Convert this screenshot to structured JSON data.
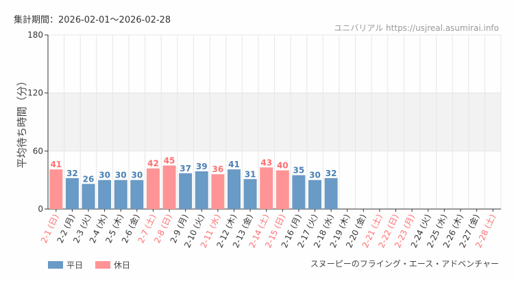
{
  "header": {
    "period": "集計期間：2026-02-01～2026-02-28",
    "credit": "ユニバリアル https://usjreal.asumirai.info"
  },
  "footer": {
    "attraction": "スヌーピーのフライング・エース・アドベンチャー"
  },
  "legend": [
    {
      "label": "平日",
      "color": "#6a9ac6"
    },
    {
      "label": "休日",
      "color": "#ff9496"
    }
  ],
  "chart_data": {
    "type": "bar",
    "ylabel": "平均待ち時間（分）",
    "ylim": [
      0,
      180
    ],
    "yticks": [
      0,
      60,
      120,
      180
    ],
    "highlight_band": [
      60,
      120
    ],
    "grid": true,
    "legend_position": "bottom-left",
    "categories": [
      "2-1 (日)",
      "2-2 (月)",
      "2-3 (火)",
      "2-4 (水)",
      "2-5 (木)",
      "2-6 (金)",
      "2-7 (土)",
      "2-8 (日)",
      "2-9 (月)",
      "2-10 (火)",
      "2-11 (水)",
      "2-12 (木)",
      "2-13 (金)",
      "2-14 (土)",
      "2-15 (日)",
      "2-16 (月)",
      "2-17 (火)",
      "2-18 (水)",
      "2-19 (木)",
      "2-20 (金)",
      "2-21 (土)",
      "2-22 (日)",
      "2-23 (月)",
      "2-24 (火)",
      "2-25 (水)",
      "2-26 (木)",
      "2-27 (金)",
      "2-28 (土)"
    ],
    "holiday": [
      true,
      false,
      false,
      false,
      false,
      false,
      true,
      true,
      false,
      false,
      true,
      false,
      false,
      true,
      true,
      false,
      false,
      false,
      false,
      false,
      true,
      true,
      true,
      false,
      false,
      false,
      false,
      true
    ],
    "values": [
      41,
      32,
      26,
      30,
      30,
      30,
      42,
      45,
      37,
      39,
      36,
      41,
      31,
      43,
      40,
      35,
      30,
      32,
      null,
      null,
      null,
      null,
      null,
      null,
      null,
      null,
      null,
      null
    ],
    "colors": {
      "weekday": "#6a9ac6",
      "holiday": "#ff9496",
      "weekday_label": "#4a7fb5",
      "holiday_label": "#ff6f72"
    }
  }
}
